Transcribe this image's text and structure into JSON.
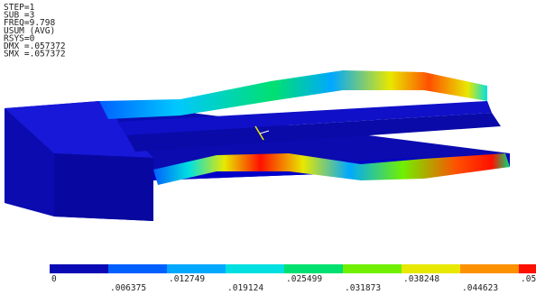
{
  "header": {
    "lines": [
      "STEP=1",
      "SUB =3",
      "FREQ=9.798",
      "USUM     (AVG)",
      "RSYS=0",
      "DMX =.057372",
      "SMX =.057372"
    ]
  },
  "legend": {
    "colors": [
      "#0a0ab4",
      "#0060ff",
      "#00a8ff",
      "#00e0e0",
      "#00e070",
      "#70f000",
      "#e8e800",
      "#ff9000",
      "#ff1000"
    ],
    "labels_top": [
      "0",
      ".012749",
      ".025499",
      ".038248",
      ".05"
    ],
    "labels_bottom": [
      ".006375",
      ".019124",
      ".031873",
      ".044623"
    ]
  }
}
